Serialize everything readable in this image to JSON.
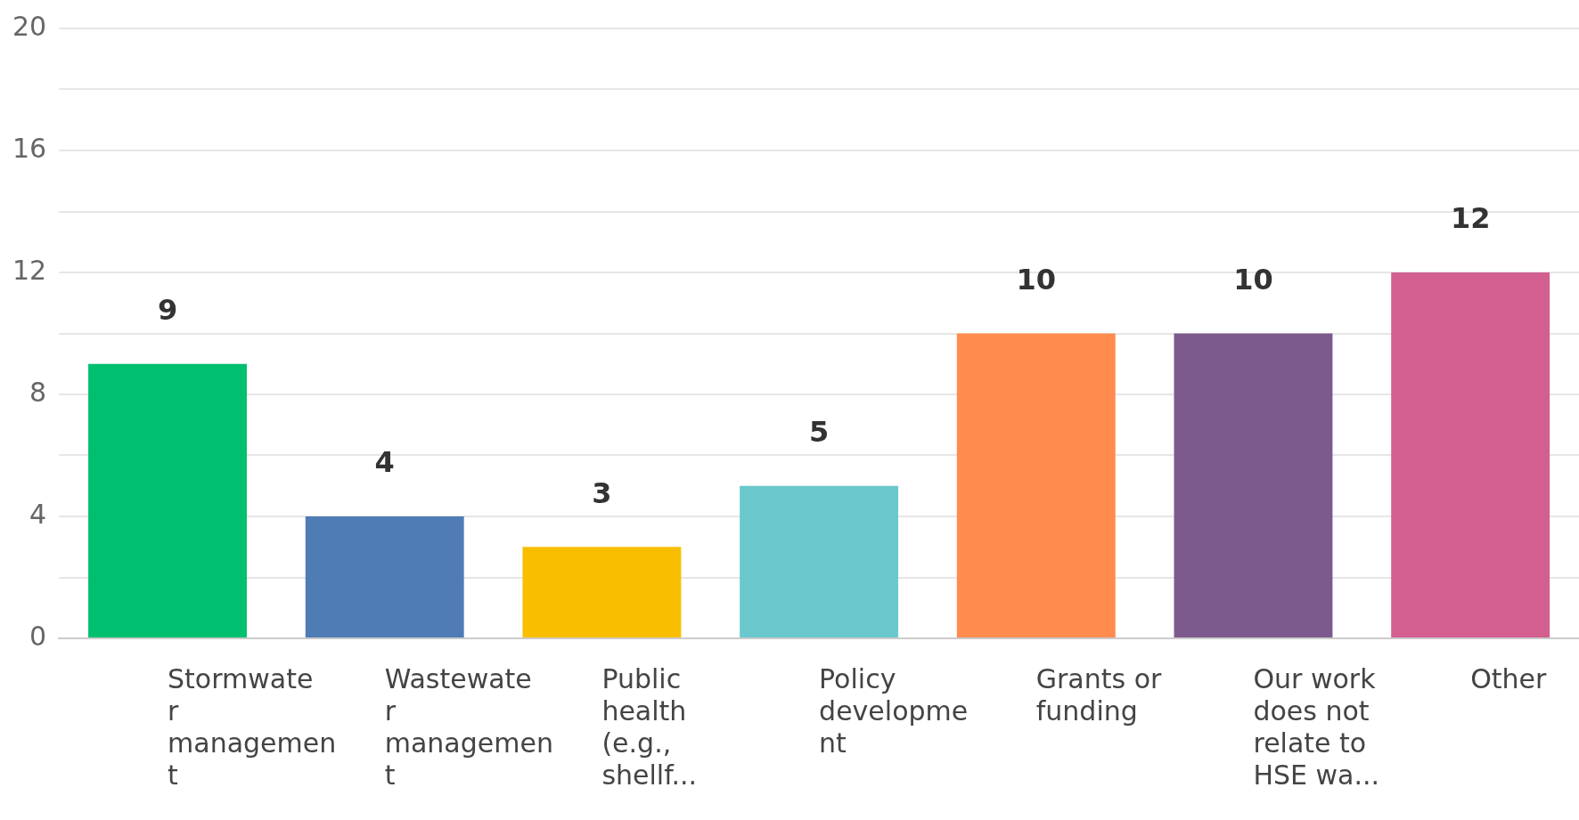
{
  "chart_data": {
    "type": "bar",
    "categories": [
      "Stormwater management",
      "Wastewater management",
      "Public health (e.g., shellf...",
      "Policy development",
      "Grants or funding",
      "Our work does not relate to HSE wa...",
      "Other"
    ],
    "values": [
      9,
      4,
      3,
      5,
      10,
      10,
      12
    ],
    "colors": [
      "#00bf6f",
      "#507cb6",
      "#f9be00",
      "#6bc8cd",
      "#ff8b4f",
      "#7d5a8e",
      "#d25f90"
    ],
    "ylim": [
      0,
      20
    ],
    "yticks": [
      0,
      {
        "value": 2,
        "label": null
      },
      4,
      {
        "value": 6,
        "label": null
      },
      8,
      {
        "value": 10,
        "label": null
      },
      12,
      {
        "value": 14,
        "label": null
      },
      16,
      {
        "value": 18,
        "label": null
      },
      20
    ],
    "grid": "y",
    "data_labels": true,
    "legend": false
  }
}
